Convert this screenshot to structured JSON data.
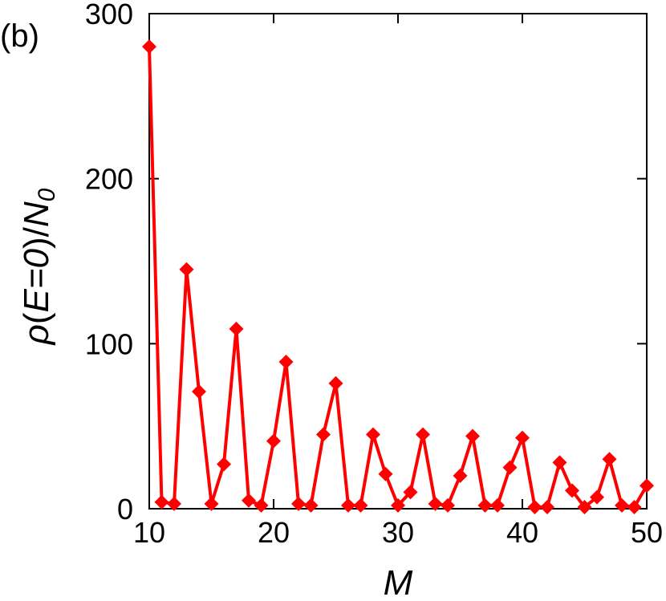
{
  "panel_label": "(b)",
  "chart_data": {
    "type": "line",
    "title": "",
    "xlabel": "M",
    "ylabel_parts": {
      "rho": "ρ",
      "paren_open": "(",
      "e": "E",
      "eq0": "=0",
      "paren_close": ")/",
      "n": "N",
      "sub": "0"
    },
    "xlim": [
      10,
      50
    ],
    "ylim": [
      0,
      300
    ],
    "xticks": [
      10,
      20,
      30,
      40,
      50
    ],
    "yticks": [
      0,
      100,
      200,
      300
    ],
    "grid": false,
    "legend": false,
    "series": [
      {
        "color": "#ff0000",
        "marker": "diamond",
        "x": [
          10,
          11,
          12,
          13,
          14,
          15,
          16,
          17,
          18,
          19,
          20,
          21,
          22,
          23,
          24,
          25,
          26,
          27,
          28,
          29,
          30,
          31,
          32,
          33,
          34,
          35,
          36,
          37,
          38,
          39,
          40,
          41,
          42,
          43,
          44,
          45,
          46,
          47,
          48,
          49,
          50
        ],
        "y": [
          280,
          4,
          3,
          145,
          71,
          3,
          27,
          109,
          5,
          2,
          41,
          89,
          3,
          2,
          45,
          76,
          2,
          2,
          45,
          21,
          2,
          10,
          45,
          3,
          2,
          20,
          44,
          2,
          2,
          25,
          43,
          1,
          1,
          28,
          11,
          1,
          7,
          30,
          2,
          1,
          14
        ]
      }
    ]
  }
}
